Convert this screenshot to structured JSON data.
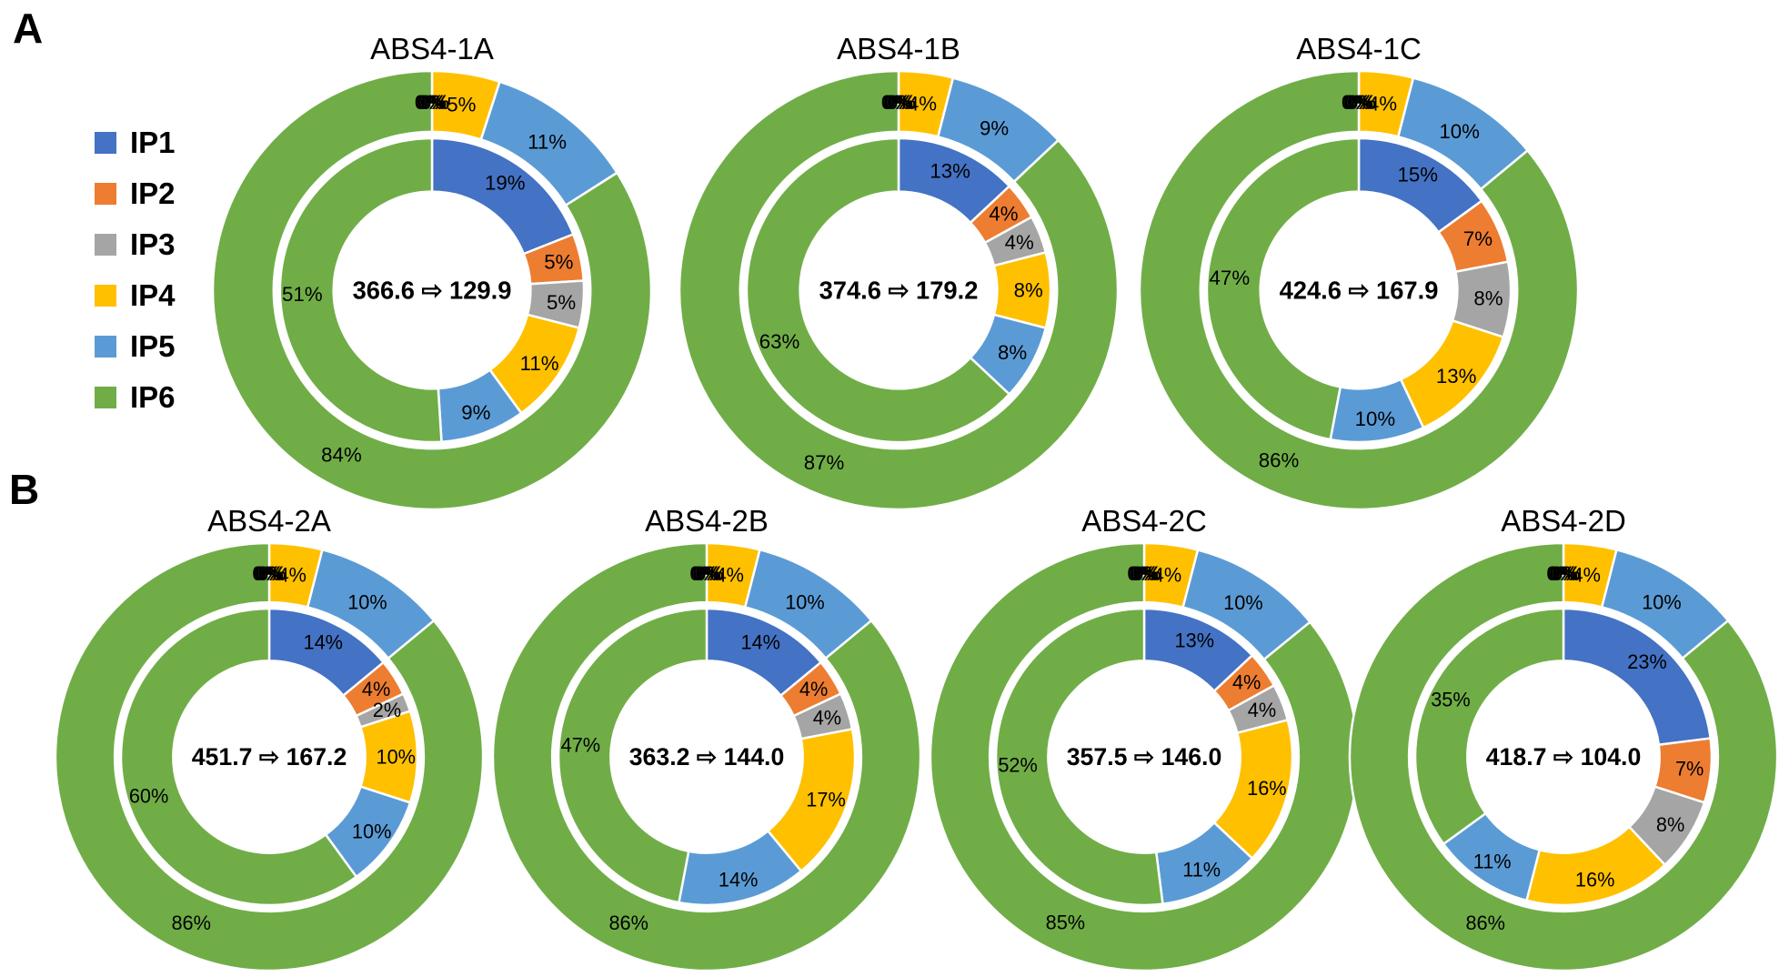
{
  "panels": [
    {
      "label": "A"
    },
    {
      "label": "B"
    }
  ],
  "legend": {
    "items": [
      {
        "label": "IP1",
        "color": "#4472C4"
      },
      {
        "label": "IP2",
        "color": "#ED7D31"
      },
      {
        "label": "IP3",
        "color": "#A5A5A5"
      },
      {
        "label": "IP4",
        "color": "#FFC000"
      },
      {
        "label": "IP5",
        "color": "#5B9BD5"
      },
      {
        "label": "IP6",
        "color": "#70AD47"
      }
    ]
  },
  "chart_data": {
    "type": "nested-donut",
    "categories": [
      "IP1",
      "IP2",
      "IP3",
      "IP4",
      "IP5",
      "IP6"
    ],
    "colors": [
      "#4472C4",
      "#ED7D31",
      "#A5A5A5",
      "#FFC000",
      "#5B9BD5",
      "#70AD47"
    ],
    "rings": [
      "outer",
      "inner"
    ],
    "legend_position": "left",
    "charts": [
      {
        "title": "ABS4-1A",
        "panel": "A",
        "center_label": "366.6 ⇨ 129.9",
        "outer_pct": [
          0,
          0,
          0,
          5,
          11,
          84
        ],
        "inner_pct": [
          19,
          5,
          5,
          11,
          9,
          51
        ]
      },
      {
        "title": "ABS4-1B",
        "panel": "A",
        "center_label": "374.6 ⇨ 179.2",
        "outer_pct": [
          0,
          0,
          0,
          4,
          9,
          87
        ],
        "inner_pct": [
          13,
          4,
          4,
          8,
          8,
          63
        ]
      },
      {
        "title": "ABS4-1C",
        "panel": "A",
        "center_label": "424.6 ⇨ 167.9",
        "outer_pct": [
          0,
          0,
          0,
          4,
          10,
          86
        ],
        "inner_pct": [
          15,
          7,
          8,
          13,
          10,
          47
        ]
      },
      {
        "title": "ABS4-2A",
        "panel": "B",
        "center_label": "451.7 ⇨ 167.2",
        "outer_pct": [
          0,
          0,
          0,
          4,
          10,
          86
        ],
        "inner_pct": [
          14,
          4,
          2,
          10,
          10,
          60
        ]
      },
      {
        "title": "ABS4-2B",
        "panel": "B",
        "center_label": "363.2 ⇨ 144.0",
        "outer_pct": [
          0,
          0,
          0,
          4,
          10,
          86
        ],
        "inner_pct": [
          14,
          4,
          4,
          17,
          14,
          47
        ]
      },
      {
        "title": "ABS4-2C",
        "panel": "B",
        "center_label": "357.5 ⇨ 146.0",
        "outer_pct": [
          0,
          0,
          0,
          4,
          10,
          85
        ],
        "inner_pct": [
          13,
          4,
          4,
          16,
          11,
          52
        ]
      },
      {
        "title": "ABS4-2D",
        "panel": "B",
        "center_label": "418.7 ⇨ 104.0",
        "outer_pct": [
          0,
          0,
          0,
          4,
          10,
          86
        ],
        "inner_pct": [
          23,
          7,
          8,
          16,
          11,
          35
        ]
      }
    ]
  }
}
